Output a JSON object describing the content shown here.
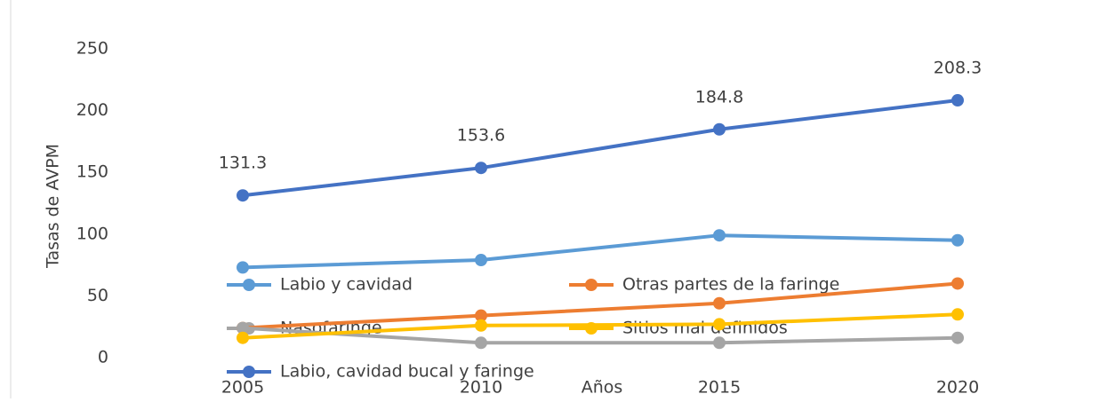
{
  "chart_data": {
    "type": "line",
    "x_label": "Años",
    "y_label": "Tasas de AVPM",
    "categories": [
      "2005",
      "2010",
      "2015",
      "2020"
    ],
    "series": [
      {
        "name": "Labio y cavidad",
        "color": "#5b9bd5",
        "values": [
          73,
          79,
          99,
          95
        ]
      },
      {
        "name": "Otras partes de la faringe",
        "color": "#ed7d31",
        "values": [
          24,
          34,
          44,
          60
        ]
      },
      {
        "name": "Nasofaringe",
        "color": "#a5a5a5",
        "values": [
          24,
          12,
          12,
          16
        ]
      },
      {
        "name": "Sitios mal definidos",
        "color": "#ffc000",
        "values": [
          16,
          26,
          27,
          35
        ]
      },
      {
        "name": "Labio, cavidad bucal y faringe",
        "color": "#4472c4",
        "values": [
          131.3,
          153.6,
          184.8,
          208.3
        ],
        "data_labels": true
      }
    ],
    "ylim": [
      0,
      250
    ],
    "yticks": [
      0,
      50,
      100,
      150,
      200,
      250
    ],
    "grid": false
  }
}
